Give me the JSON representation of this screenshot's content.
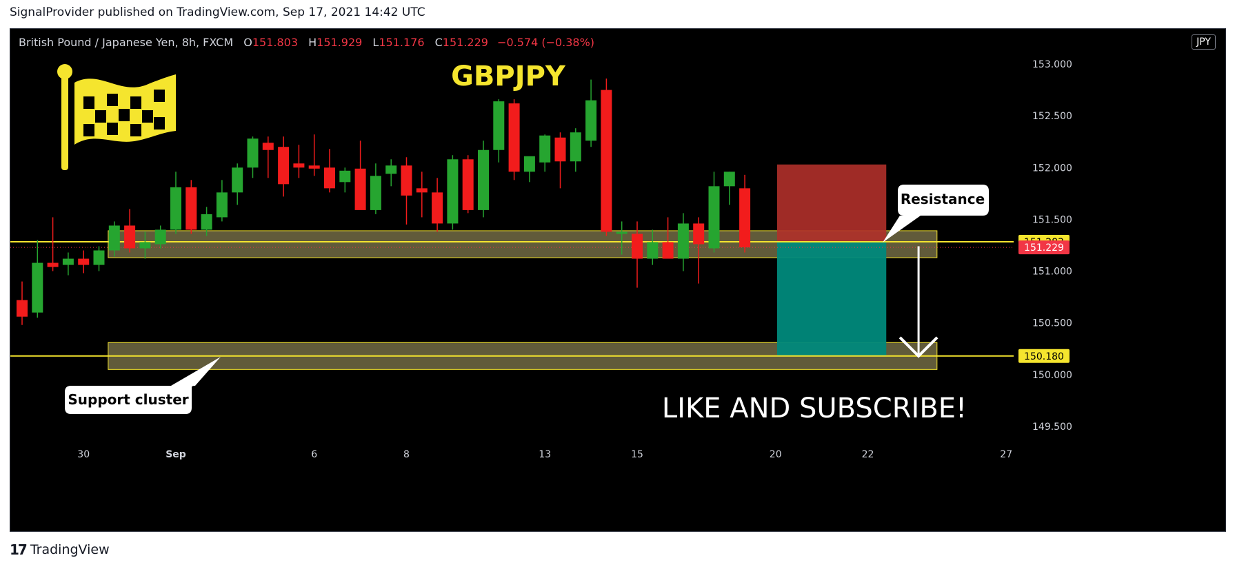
{
  "header": {
    "attribution": "SignalProvider published on TradingView.com, Sep 17, 2021 14:42 UTC"
  },
  "legend": {
    "symbol": "British Pound / Japanese Yen, 8h, FXCM",
    "o_label": "O",
    "o_value": "151.803",
    "h_label": "H",
    "h_value": "151.929",
    "l_label": "L",
    "l_value": "151.176",
    "c_label": "C",
    "c_value": "151.229",
    "change": "−0.574 (−0.38%)"
  },
  "currency": "JPY",
  "footer": {
    "brand": "TradingView",
    "mark": "17"
  },
  "colors": {
    "up": "#26a530",
    "down": "#f21c1c",
    "zone_fill": "#6b6540",
    "zone_line": "#f5e52e",
    "target_fill": "#00897b",
    "stop_fill": "#b0302a",
    "last_price": "#f23645",
    "accent_yellow": "#f5e52e"
  },
  "chart_data": {
    "type": "candlestick",
    "title": "GBPJPY",
    "interval": "8h",
    "ylim": [
      149.3,
      153.3
    ],
    "y_ticks": [
      "153.000",
      "152.500",
      "152.000",
      "151.500",
      "151.000",
      "150.500",
      "150.000",
      "149.500"
    ],
    "x_ticks": [
      {
        "label": "30",
        "bar": 4
      },
      {
        "label": "Sep",
        "bar": 10
      },
      {
        "label": "6",
        "bar": 19
      },
      {
        "label": "8",
        "bar": 25
      },
      {
        "label": "13",
        "bar": 34
      },
      {
        "label": "15",
        "bar": 40
      },
      {
        "label": "20",
        "bar": 49
      },
      {
        "label": "22",
        "bar": 55
      },
      {
        "label": "27",
        "bar": 64
      }
    ],
    "candles": [
      {
        "o": 150.72,
        "h": 150.9,
        "l": 150.48,
        "c": 150.56
      },
      {
        "o": 150.6,
        "h": 151.3,
        "l": 150.55,
        "c": 151.08
      },
      {
        "o": 151.08,
        "h": 151.52,
        "l": 151.0,
        "c": 151.04
      },
      {
        "o": 151.06,
        "h": 151.18,
        "l": 150.96,
        "c": 151.12
      },
      {
        "o": 151.12,
        "h": 151.2,
        "l": 150.98,
        "c": 151.06
      },
      {
        "o": 151.06,
        "h": 151.24,
        "l": 151.0,
        "c": 151.2
      },
      {
        "o": 151.2,
        "h": 151.48,
        "l": 151.14,
        "c": 151.44
      },
      {
        "o": 151.44,
        "h": 151.6,
        "l": 151.18,
        "c": 151.22
      },
      {
        "o": 151.22,
        "h": 151.38,
        "l": 151.12,
        "c": 151.28
      },
      {
        "o": 151.26,
        "h": 151.44,
        "l": 151.22,
        "c": 151.4
      },
      {
        "o": 151.4,
        "h": 151.96,
        "l": 151.36,
        "c": 151.81
      },
      {
        "o": 151.81,
        "h": 151.88,
        "l": 151.36,
        "c": 151.4
      },
      {
        "o": 151.4,
        "h": 151.62,
        "l": 151.34,
        "c": 151.55
      },
      {
        "o": 151.52,
        "h": 151.88,
        "l": 151.48,
        "c": 151.76
      },
      {
        "o": 151.76,
        "h": 152.04,
        "l": 151.64,
        "c": 152.0
      },
      {
        "o": 152.0,
        "h": 152.3,
        "l": 151.9,
        "c": 152.28
      },
      {
        "o": 152.24,
        "h": 152.3,
        "l": 151.9,
        "c": 152.17
      },
      {
        "o": 152.2,
        "h": 152.3,
        "l": 151.72,
        "c": 151.84
      },
      {
        "o": 152.04,
        "h": 152.22,
        "l": 151.9,
        "c": 152.0
      },
      {
        "o": 152.02,
        "h": 152.32,
        "l": 151.92,
        "c": 151.99
      },
      {
        "o": 152.0,
        "h": 152.18,
        "l": 151.76,
        "c": 151.8
      },
      {
        "o": 151.86,
        "h": 152.0,
        "l": 151.76,
        "c": 151.97
      },
      {
        "o": 151.99,
        "h": 152.26,
        "l": 151.6,
        "c": 151.59
      },
      {
        "o": 151.59,
        "h": 152.04,
        "l": 151.55,
        "c": 151.92
      },
      {
        "o": 151.94,
        "h": 152.08,
        "l": 151.82,
        "c": 152.02
      },
      {
        "o": 152.02,
        "h": 152.1,
        "l": 151.45,
        "c": 151.73
      },
      {
        "o": 151.8,
        "h": 151.96,
        "l": 151.52,
        "c": 151.76
      },
      {
        "o": 151.76,
        "h": 151.9,
        "l": 151.38,
        "c": 151.46
      },
      {
        "o": 151.46,
        "h": 152.12,
        "l": 151.4,
        "c": 152.08
      },
      {
        "o": 152.08,
        "h": 152.12,
        "l": 151.56,
        "c": 151.59
      },
      {
        "o": 151.59,
        "h": 152.26,
        "l": 151.52,
        "c": 152.17
      },
      {
        "o": 152.17,
        "h": 152.66,
        "l": 152.05,
        "c": 152.64
      },
      {
        "o": 152.62,
        "h": 152.66,
        "l": 151.88,
        "c": 151.96
      },
      {
        "o": 151.96,
        "h": 152.1,
        "l": 151.86,
        "c": 152.11
      },
      {
        "o": 152.05,
        "h": 152.32,
        "l": 151.96,
        "c": 152.31
      },
      {
        "o": 152.29,
        "h": 152.34,
        "l": 151.8,
        "c": 152.06
      },
      {
        "o": 152.06,
        "h": 152.38,
        "l": 151.96,
        "c": 152.34
      },
      {
        "o": 152.26,
        "h": 152.85,
        "l": 152.2,
        "c": 152.65
      },
      {
        "o": 152.75,
        "h": 152.86,
        "l": 151.34,
        "c": 151.38
      },
      {
        "o": 151.36,
        "h": 151.48,
        "l": 151.16,
        "c": 151.38
      },
      {
        "o": 151.36,
        "h": 151.48,
        "l": 150.84,
        "c": 151.12
      },
      {
        "o": 151.12,
        "h": 151.4,
        "l": 151.06,
        "c": 151.28
      },
      {
        "o": 151.28,
        "h": 151.52,
        "l": 151.16,
        "c": 151.12
      },
      {
        "o": 151.12,
        "h": 151.56,
        "l": 151.0,
        "c": 151.46
      },
      {
        "o": 151.46,
        "h": 151.52,
        "l": 150.88,
        "c": 151.26
      },
      {
        "o": 151.22,
        "h": 151.96,
        "l": 151.18,
        "c": 151.82
      },
      {
        "o": 151.82,
        "h": 151.96,
        "l": 151.64,
        "c": 151.96
      },
      {
        "o": 151.8,
        "h": 151.93,
        "l": 151.18,
        "c": 151.23
      }
    ],
    "zones": [
      {
        "name": "resistance-zone",
        "from_bar": 5.6,
        "to_bar": 59.5,
        "low": 151.13,
        "high": 151.39
      },
      {
        "name": "support-zone",
        "from_bar": 5.6,
        "to_bar": 59.5,
        "low": 150.05,
        "high": 150.31
      }
    ],
    "levels": [
      {
        "name": "resistance-level",
        "price": 151.283,
        "label": "151.283",
        "color": "#f5e52e",
        "text_color": "#000000"
      },
      {
        "name": "last-price",
        "price": 151.229,
        "label": "151.229",
        "color": "#f23645",
        "text_color": "#ffffff"
      },
      {
        "name": "support-level",
        "price": 150.18,
        "label": "150.180",
        "color": "#f5e52e",
        "text_color": "#000000"
      }
    ],
    "position": {
      "from_bar": 49.1,
      "to_bar": 56.2,
      "entry": 151.283,
      "stop": 152.03,
      "target": 150.18
    },
    "arrow": {
      "bar": 58.3,
      "from": 151.24,
      "to": 150.18
    },
    "annotations": [
      {
        "name": "resistance-callout",
        "text": "Resistance"
      },
      {
        "name": "support-callout",
        "text": "Support cluster"
      },
      {
        "name": "cta-text",
        "text": "LIKE AND SUBSCRIBE!"
      }
    ]
  }
}
